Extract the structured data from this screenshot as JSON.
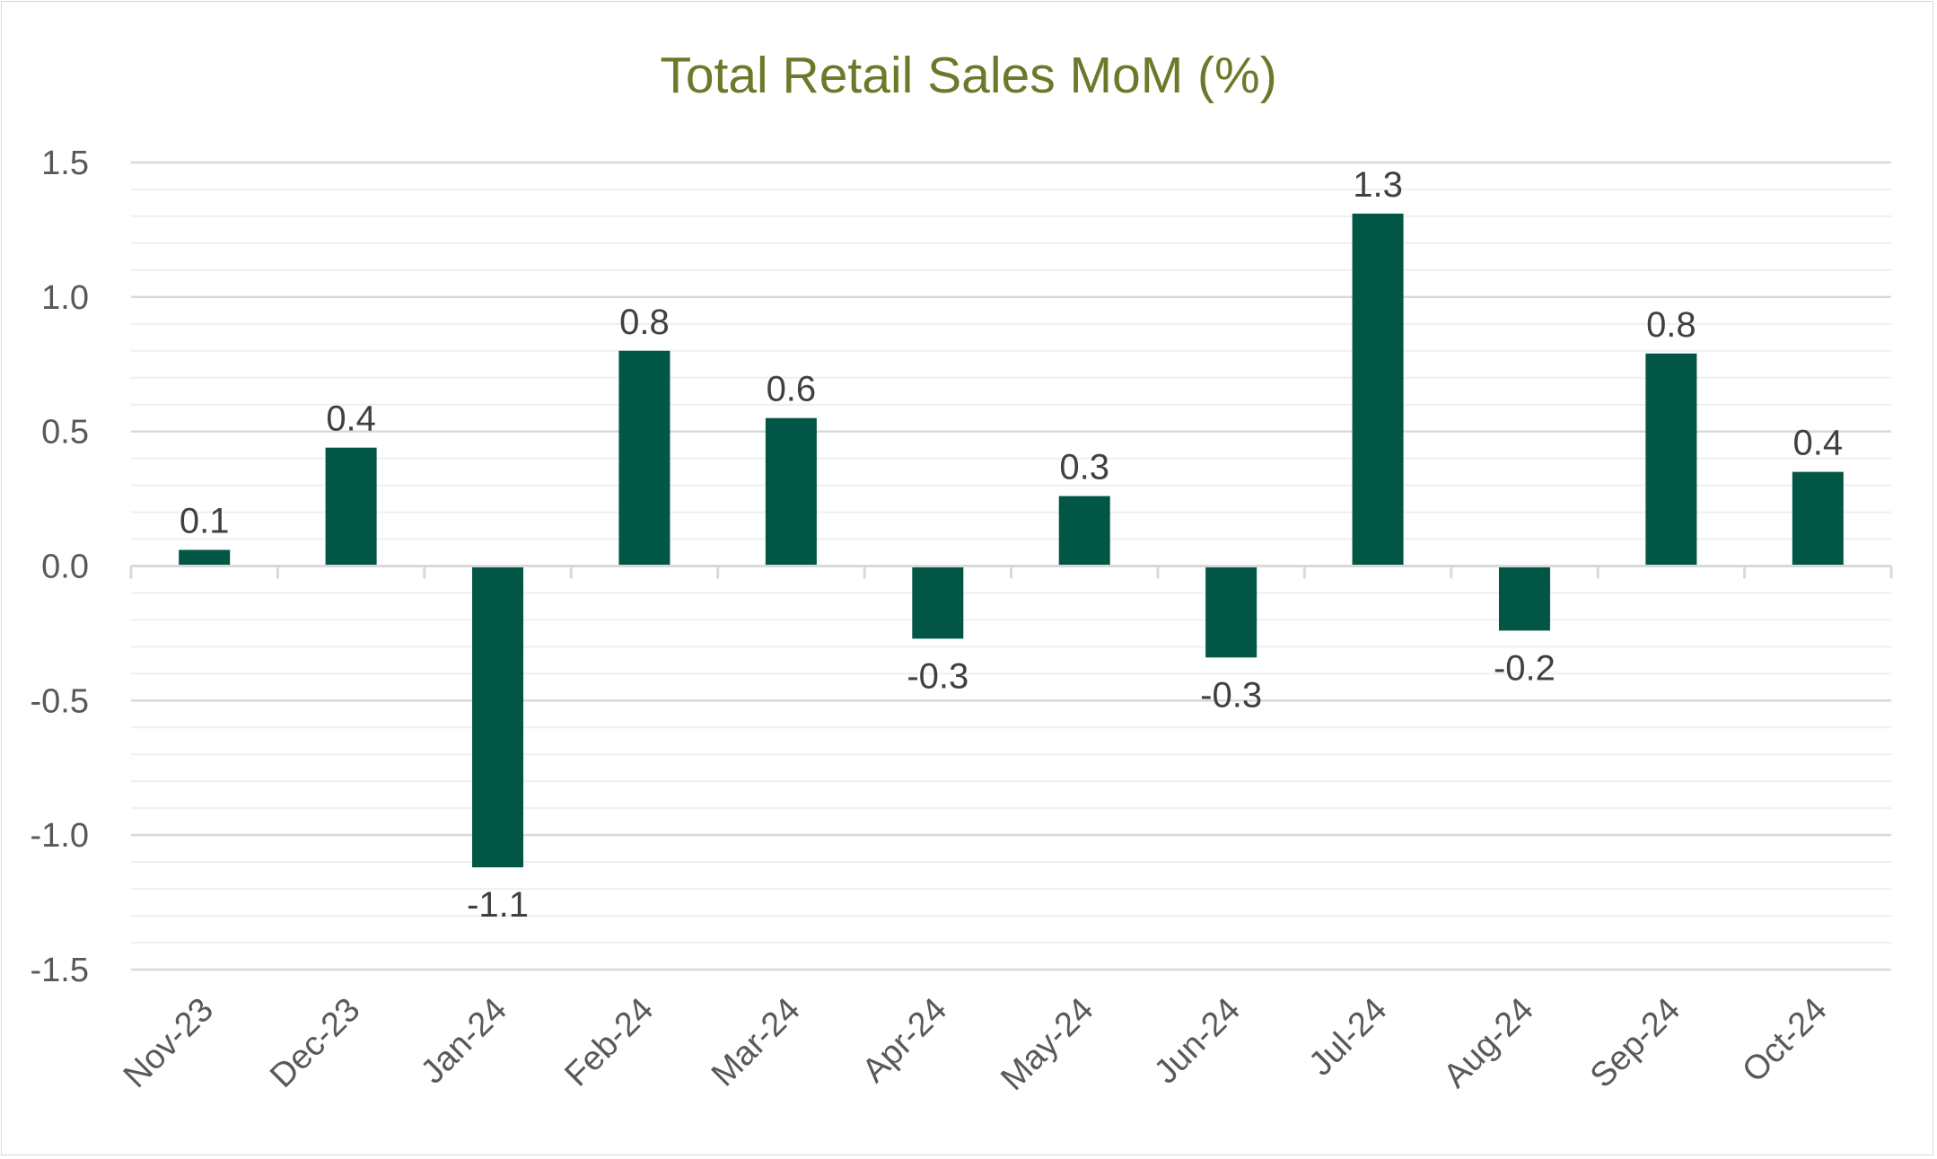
{
  "chart_data": {
    "type": "bar",
    "title": "Total Retail Sales MoM (%)",
    "xlabel": "",
    "ylabel": "",
    "categories": [
      "Nov-23",
      "Dec-23",
      "Jan-24",
      "Feb-24",
      "Mar-24",
      "Apr-24",
      "May-24",
      "Jun-24",
      "Jul-24",
      "Aug-24",
      "Sep-24",
      "Oct-24"
    ],
    "values": [
      0.06,
      0.44,
      -1.12,
      0.8,
      0.55,
      -0.27,
      0.26,
      -0.34,
      1.31,
      -0.24,
      0.79,
      0.35
    ],
    "data_labels": [
      "0.1",
      "0.4",
      "-1.1",
      "0.8",
      "0.6",
      "-0.3",
      "0.3",
      "-0.3",
      "1.3",
      "-0.2",
      "0.8",
      "0.4"
    ],
    "ylim": [
      -1.5,
      1.5
    ],
    "yticks": [
      1.5,
      1.0,
      0.5,
      0.0,
      -0.5,
      -1.0,
      -1.5
    ],
    "ytick_labels": [
      "1.5",
      "1.0",
      "0.5",
      "0.0",
      "-0.5",
      "-1.0",
      "-1.5"
    ],
    "minor_gridline_step": 0.1,
    "grid": true,
    "legend": "none",
    "colors": {
      "bar": "#025645",
      "title": "#6b7a2a",
      "major_grid": "#d9d9d9",
      "minor_grid": "#efefef",
      "axis_text": "#595959",
      "data_label_text": "#404040"
    }
  }
}
